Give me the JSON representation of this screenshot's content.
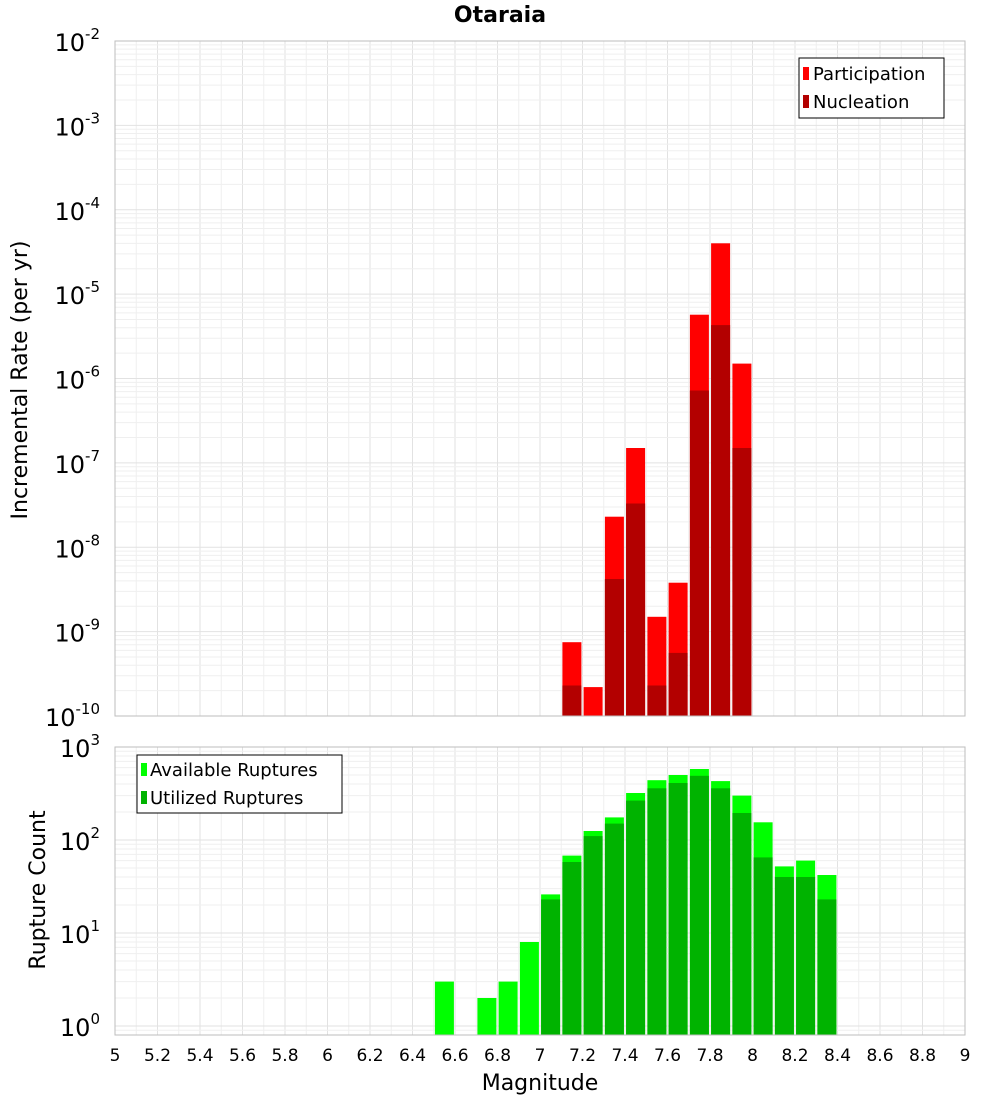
{
  "chart_data": [
    {
      "type": "bar",
      "title": "Otaraia",
      "xlabel": "",
      "ylabel": "Incremental Rate (per yr)",
      "xlim": [
        5,
        9
      ],
      "ylim": [
        1e-10,
        0.01
      ],
      "yscale": "log",
      "grid": true,
      "legend_position": "top-right",
      "series": [
        {
          "name": "Participation",
          "color": "#ff0000",
          "x": [
            7.15,
            7.25,
            7.35,
            7.45,
            7.55,
            7.65,
            7.75,
            7.85,
            7.95
          ],
          "values": [
            7.5e-10,
            2.2e-10,
            2.3e-08,
            1.5e-07,
            1.5e-09,
            3.8e-09,
            5.7e-06,
            4e-05,
            1.5e-06
          ]
        },
        {
          "name": "Nucleation",
          "color": "#b30000",
          "x": [
            7.15,
            7.25,
            7.35,
            7.45,
            7.55,
            7.65,
            7.75,
            7.85,
            7.95
          ],
          "values": [
            2.3e-10,
            1e-10,
            4.2e-09,
            3.3e-08,
            2.3e-10,
            5.6e-10,
            7.2e-07,
            4.3e-06,
            1.5e-07
          ]
        }
      ],
      "yticks": [
        {
          "base": "10",
          "exp": "-10"
        },
        {
          "base": "10",
          "exp": "-9"
        },
        {
          "base": "10",
          "exp": "-8"
        },
        {
          "base": "10",
          "exp": "-7"
        },
        {
          "base": "10",
          "exp": "-6"
        },
        {
          "base": "10",
          "exp": "-5"
        },
        {
          "base": "10",
          "exp": "-4"
        },
        {
          "base": "10",
          "exp": "-3"
        },
        {
          "base": "10",
          "exp": "-2"
        }
      ]
    },
    {
      "type": "bar",
      "title": "",
      "xlabel": "Magnitude",
      "ylabel": "Rupture Count",
      "xlim": [
        5,
        9
      ],
      "ylim": [
        0.8,
        1000
      ],
      "yscale": "log",
      "grid": true,
      "legend_position": "top-left",
      "series": [
        {
          "name": "Available Ruptures",
          "color": "#00ff00",
          "x": [
            6.55,
            6.75,
            6.85,
            6.95,
            7.05,
            7.15,
            7.25,
            7.35,
            7.45,
            7.55,
            7.65,
            7.75,
            7.85,
            7.95,
            8.05,
            8.15,
            8.25,
            8.35
          ],
          "values": [
            3,
            2,
            3,
            8,
            26,
            68,
            125,
            175,
            320,
            440,
            500,
            580,
            430,
            300,
            155,
            52,
            60,
            42
          ]
        },
        {
          "name": "Utilized Ruptures",
          "color": "#00b300",
          "x": [
            6.55,
            6.75,
            6.85,
            6.95,
            7.05,
            7.15,
            7.25,
            7.35,
            7.45,
            7.55,
            7.65,
            7.75,
            7.85,
            7.95,
            8.05,
            8.15,
            8.25,
            8.35
          ],
          "values": [
            0,
            0,
            0,
            0,
            23,
            58,
            110,
            150,
            265,
            360,
            410,
            490,
            360,
            195,
            65,
            40,
            40,
            23
          ]
        }
      ],
      "xticks": [
        "5",
        "5.2",
        "5.4",
        "5.6",
        "5.8",
        "6",
        "6.2",
        "6.4",
        "6.6",
        "6.8",
        "7",
        "7.2",
        "7.4",
        "7.6",
        "7.8",
        "8",
        "8.2",
        "8.4",
        "8.6",
        "8.8",
        "9"
      ],
      "yticks": [
        {
          "base": "10",
          "exp": "0"
        },
        {
          "base": "10",
          "exp": "1"
        },
        {
          "base": "10",
          "exp": "2"
        },
        {
          "base": "10",
          "exp": "3"
        }
      ]
    }
  ]
}
